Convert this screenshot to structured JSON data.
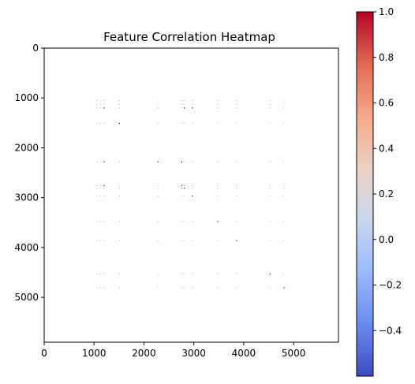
{
  "chart_data": {
    "type": "heatmap",
    "title": "Feature Correlation Heatmap",
    "xlabel": "",
    "ylabel": "",
    "matrix_size": 5900,
    "xlim": [
      0,
      5900
    ],
    "ylim": [
      5900,
      0
    ],
    "x_ticks": [
      0,
      1000,
      2000,
      3000,
      4000,
      5000
    ],
    "y_ticks": [
      0,
      1000,
      2000,
      3000,
      4000,
      5000
    ],
    "x_tick_labels": [
      "0",
      "1000",
      "2000",
      "3000",
      "4000",
      "5000"
    ],
    "y_tick_labels": [
      "0",
      "1000",
      "2000",
      "3000",
      "4000",
      "5000"
    ],
    "background_value": null,
    "sparse_feature_indices": [
      1050,
      1120,
      1190,
      1500,
      2270,
      2750,
      2800,
      2960,
      3470,
      3850,
      4520,
      4800
    ],
    "strong_cells": [
      {
        "row": 1190,
        "col": 1190,
        "value": 1.0
      },
      {
        "row": 1190,
        "col": 2800,
        "value": 1.0
      },
      {
        "row": 1190,
        "col": 2960,
        "value": 1.0
      },
      {
        "row": 1500,
        "col": 1500,
        "value": 1.0
      },
      {
        "row": 2270,
        "col": 1190,
        "value": 1.0
      },
      {
        "row": 2270,
        "col": 2270,
        "value": 1.0
      },
      {
        "row": 2270,
        "col": 2750,
        "value": 1.0
      },
      {
        "row": 2750,
        "col": 1190,
        "value": 1.0
      },
      {
        "row": 2750,
        "col": 2750,
        "value": 1.0
      },
      {
        "row": 2800,
        "col": 2800,
        "value": 1.0
      },
      {
        "row": 2960,
        "col": 2960,
        "value": 1.0
      },
      {
        "row": 3470,
        "col": 3470,
        "value": 1.0
      },
      {
        "row": 3850,
        "col": 3850,
        "value": 1.0
      },
      {
        "row": 4520,
        "col": 4520,
        "value": 1.0
      },
      {
        "row": 4800,
        "col": 4800,
        "value": 1.0
      }
    ],
    "faint_cell_value": 0.15,
    "colorbar": {
      "colormap": "coolwarm",
      "vmin": -0.6,
      "vmax": 1.0,
      "ticks": [
        -0.4,
        -0.2,
        0.0,
        0.2,
        0.4,
        0.6,
        0.8,
        1.0
      ],
      "tick_labels": [
        "−0.4",
        "−0.2",
        "0.0",
        "0.2",
        "0.4",
        "0.6",
        "0.8",
        "1.0"
      ],
      "color_stops": [
        "#3b4cc0",
        "#6a8bef",
        "#9abbff",
        "#c9d7f0",
        "#edd1c2",
        "#f7a889",
        "#e26952",
        "#b40426"
      ]
    },
    "grid": false
  }
}
